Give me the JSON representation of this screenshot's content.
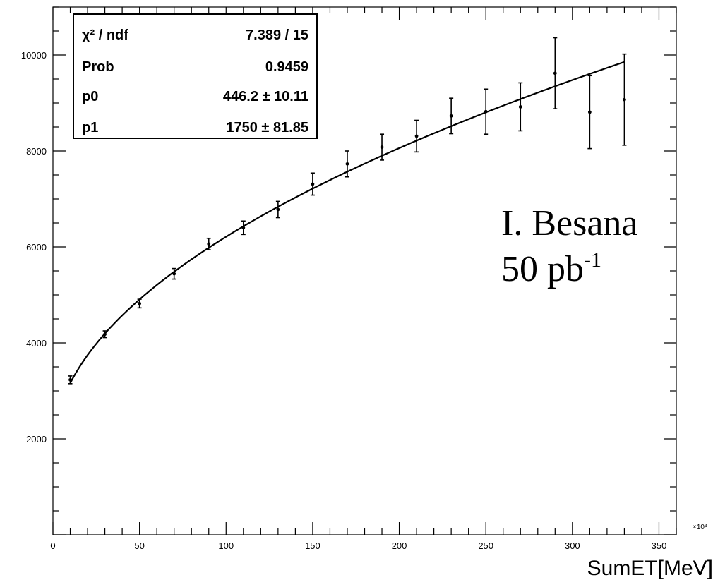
{
  "chart_data": {
    "type": "scatter",
    "title": "",
    "xlabel": "SumET[MeV]",
    "ylabel": "",
    "x_multiplier": "×10³",
    "xlim": [
      0,
      360
    ],
    "ylim": [
      0,
      11000
    ],
    "x_ticks": [
      "0",
      "50",
      "100",
      "150",
      "200",
      "250",
      "300",
      "350"
    ],
    "y_ticks": [
      "2000",
      "4000",
      "6000",
      "8000",
      "10000"
    ],
    "series": [
      {
        "points": [
          {
            "x": 10,
            "y": 3230,
            "err": 80
          },
          {
            "x": 30,
            "y": 4180,
            "err": 70
          },
          {
            "x": 50,
            "y": 4820,
            "err": 90
          },
          {
            "x": 70,
            "y": 5440,
            "err": 110
          },
          {
            "x": 90,
            "y": 6060,
            "err": 120
          },
          {
            "x": 110,
            "y": 6400,
            "err": 140
          },
          {
            "x": 130,
            "y": 6780,
            "err": 170
          },
          {
            "x": 150,
            "y": 7310,
            "err": 230
          },
          {
            "x": 170,
            "y": 7730,
            "err": 270
          },
          {
            "x": 190,
            "y": 8080,
            "err": 270
          },
          {
            "x": 210,
            "y": 8310,
            "err": 330
          },
          {
            "x": 230,
            "y": 8730,
            "err": 370
          },
          {
            "x": 250,
            "y": 8820,
            "err": 470
          },
          {
            "x": 270,
            "y": 8920,
            "err": 500
          },
          {
            "x": 290,
            "y": 9620,
            "err": 740
          },
          {
            "x": 310,
            "y": 8810,
            "err": 760
          },
          {
            "x": 330,
            "y": 9070,
            "err": 950
          }
        ]
      }
    ],
    "fit": {
      "p0": 446.2,
      "p1": 1750,
      "x_range": [
        10,
        330
      ]
    },
    "grid": false,
    "stats_box": {
      "rows": [
        {
          "label": "χ² / ndf",
          "value": "7.389 / 15"
        },
        {
          "label": "Prob",
          "value": "0.9459"
        },
        {
          "label": "p0",
          "value": "446.2 ± 10.11"
        },
        {
          "label": "p1",
          "value": "1750 ± 81.85"
        }
      ]
    },
    "annotation": {
      "line1": "I. Besana",
      "line2_main": "50 pb",
      "line2_sup": "-1"
    }
  }
}
